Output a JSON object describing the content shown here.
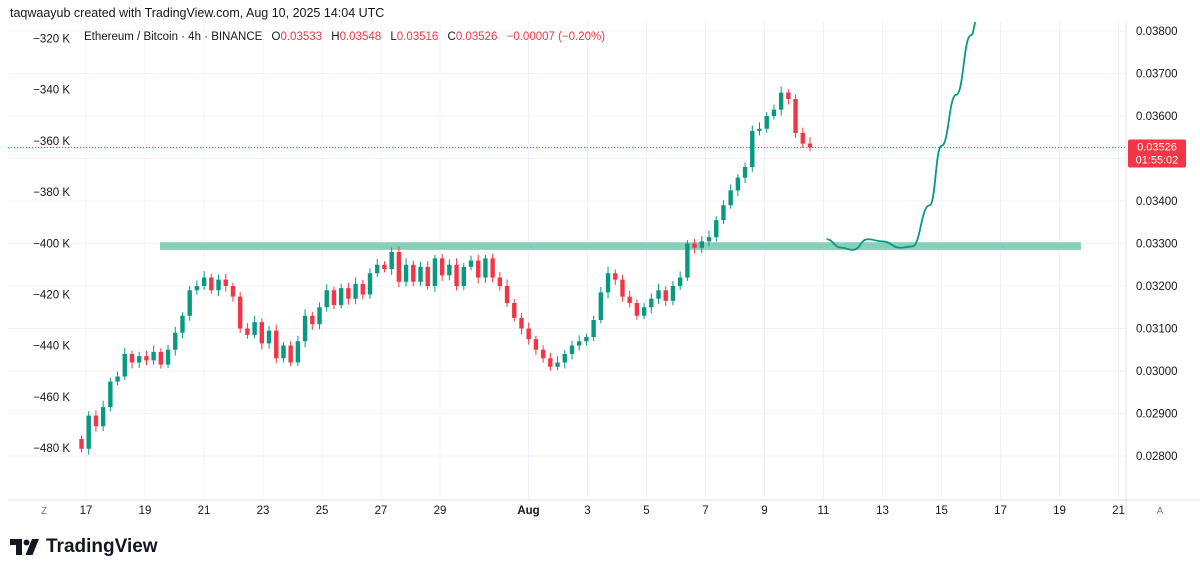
{
  "header": {
    "credit": "taqwaayub created with TradingView.com, Aug 10, 2025 14:04 UTC"
  },
  "legend": {
    "symbol": "Ethereum / Bitcoin · 4h · BINANCE",
    "o_label": "O",
    "o_value": "0.03533",
    "h_label": "H",
    "h_value": "0.03548",
    "l_label": "L",
    "l_value": "0.03516",
    "c_label": "C",
    "c_value": "0.03526",
    "change": "−0.00007 (−0.20%)"
  },
  "price_badge": {
    "price": "0.03526",
    "countdown": "01:55:02"
  },
  "footer": {
    "brand": "TradingView"
  },
  "colors": {
    "up": "#089981",
    "down": "#f23645",
    "zone": "#86cfb9",
    "projection": "#089981",
    "grid": "#f0f3fa"
  },
  "chart_data": {
    "type": "candlestick",
    "interval": "4h",
    "right_axis": {
      "ticks": [
        0.028,
        0.029,
        0.03,
        0.031,
        0.032,
        0.033,
        0.034,
        0.035,
        0.036,
        0.037,
        0.038
      ],
      "labels": [
        "0.02800",
        "0.02900",
        "0.03000",
        "0.03100",
        "0.03200",
        "0.03300",
        "0.03400",
        "0.03500",
        "0.03600",
        "0.03700",
        "0.03800"
      ]
    },
    "left_axis": {
      "labels": [
        "−320 K",
        "−340 K",
        "−360 K",
        "−380 K",
        "−400 K",
        "−420 K",
        "−440 K",
        "−460 K",
        "−480 K"
      ]
    },
    "x_axis": {
      "labels": [
        "17",
        "19",
        "21",
        "23",
        "25",
        "27",
        "29",
        "Aug",
        "3",
        "5",
        "7",
        "9",
        "11",
        "13",
        "15",
        "17",
        "19",
        "21"
      ],
      "start_label": "Z",
      "end_label": "A"
    },
    "last_price": 0.03526,
    "support_zone": {
      "low": 0.03285,
      "high": 0.03303
    },
    "closes": [
      0.02817,
      0.02895,
      0.0287,
      0.02915,
      0.02975,
      0.02987,
      0.0304,
      0.0302,
      0.03035,
      0.03025,
      0.03045,
      0.03015,
      0.0305,
      0.0309,
      0.0313,
      0.0319,
      0.032,
      0.0322,
      0.0319,
      0.03215,
      0.032,
      0.03175,
      0.031,
      0.03085,
      0.03115,
      0.03065,
      0.03095,
      0.0303,
      0.0306,
      0.0302,
      0.0307,
      0.0313,
      0.0311,
      0.0315,
      0.0319,
      0.03155,
      0.03195,
      0.0317,
      0.03205,
      0.0318,
      0.0323,
      0.0325,
      0.0324,
      0.0328,
      0.0321,
      0.0325,
      0.0321,
      0.03245,
      0.032,
      0.03265,
      0.03225,
      0.0325,
      0.032,
      0.03245,
      0.0326,
      0.0322,
      0.03265,
      0.0322,
      0.032,
      0.0316,
      0.03125,
      0.031,
      0.03075,
      0.0305,
      0.0303,
      0.0301,
      0.0302,
      0.0304,
      0.0306,
      0.0307,
      0.0308,
      0.0312,
      0.03185,
      0.0323,
      0.03215,
      0.03175,
      0.0316,
      0.0313,
      0.0315,
      0.0317,
      0.0319,
      0.03165,
      0.032,
      0.0322,
      0.033,
      0.0329,
      0.03305,
      0.03315,
      0.03355,
      0.0339,
      0.03425,
      0.03455,
      0.0348,
      0.03565,
      0.0357,
      0.036,
      0.03615,
      0.03655,
      0.0364,
      0.0356,
      0.03535,
      0.03526
    ],
    "projection_path": [
      [
        11.1,
        0.0331
      ],
      [
        11.6,
        0.0329
      ],
      [
        12.0,
        0.03285
      ],
      [
        12.5,
        0.0331
      ],
      [
        13.0,
        0.03305
      ],
      [
        13.6,
        0.0329
      ],
      [
        14.0,
        0.03293
      ],
      [
        14.6,
        0.0339
      ],
      [
        15.0,
        0.0353
      ],
      [
        15.5,
        0.0365
      ],
      [
        16.0,
        0.0379
      ],
      [
        16.2,
        0.03825
      ]
    ]
  }
}
